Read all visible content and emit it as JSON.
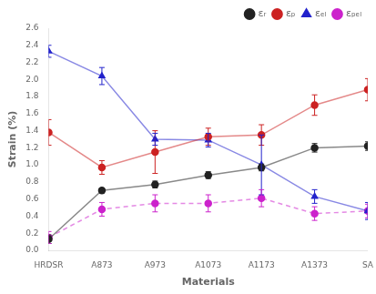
{
  "chart_data": {
    "type": "line",
    "categories": [
      "HRDSR",
      "A873",
      "A973",
      "A1073",
      "A1173",
      "A1373",
      "SA"
    ],
    "xlabel": "Materials",
    "ylabel": "Strain (%)",
    "ylim": [
      0,
      2.6
    ],
    "yticks": [
      {
        "value": 0,
        "label": "0.0"
      },
      0.2,
      0.4,
      0.6,
      0.8,
      {
        "value": 1,
        "label": "1.0"
      },
      1.2,
      1.4,
      1.6,
      1.8,
      {
        "value": 2,
        "label": "2.0"
      },
      2.2,
      2.4,
      2.6
    ],
    "grid": false,
    "legend": "upper right",
    "series": [
      {
        "name": "εᵣ",
        "color": "#222222",
        "marker": "circle",
        "line_style": "solid",
        "values": [
          0.13,
          0.7,
          0.77,
          0.88,
          0.97,
          1.2,
          1.22
        ],
        "errors": [
          0.05,
          0.03,
          0.04,
          0.04,
          0.04,
          0.05,
          0.05
        ]
      },
      {
        "name": "εₚ",
        "color": "#cc2222",
        "marker": "circle",
        "line_style": "solid",
        "values": [
          1.38,
          0.97,
          1.15,
          1.33,
          1.35,
          1.7,
          1.88
        ],
        "errors": [
          0.15,
          0.08,
          0.25,
          0.1,
          0.12,
          0.12,
          0.13
        ]
      },
      {
        "name": "εₑₗ",
        "color": "#2222cc",
        "marker": "triangle",
        "line_style": "solid",
        "values": [
          2.33,
          2.04,
          1.3,
          1.29,
          1.0,
          0.63,
          0.46
        ],
        "errors": [
          0.07,
          0.1,
          0.07,
          0.08,
          0.35,
          0.08,
          0.1
        ]
      },
      {
        "name": "εₚₑₗ",
        "color": "#cc22cc",
        "marker": "circle",
        "line_style": "dashed",
        "values": [
          0.15,
          0.48,
          0.55,
          0.55,
          0.61,
          0.43,
          0.46
        ],
        "errors": [
          0.07,
          0.08,
          0.1,
          0.1,
          0.1,
          0.08,
          0.08
        ]
      }
    ]
  }
}
